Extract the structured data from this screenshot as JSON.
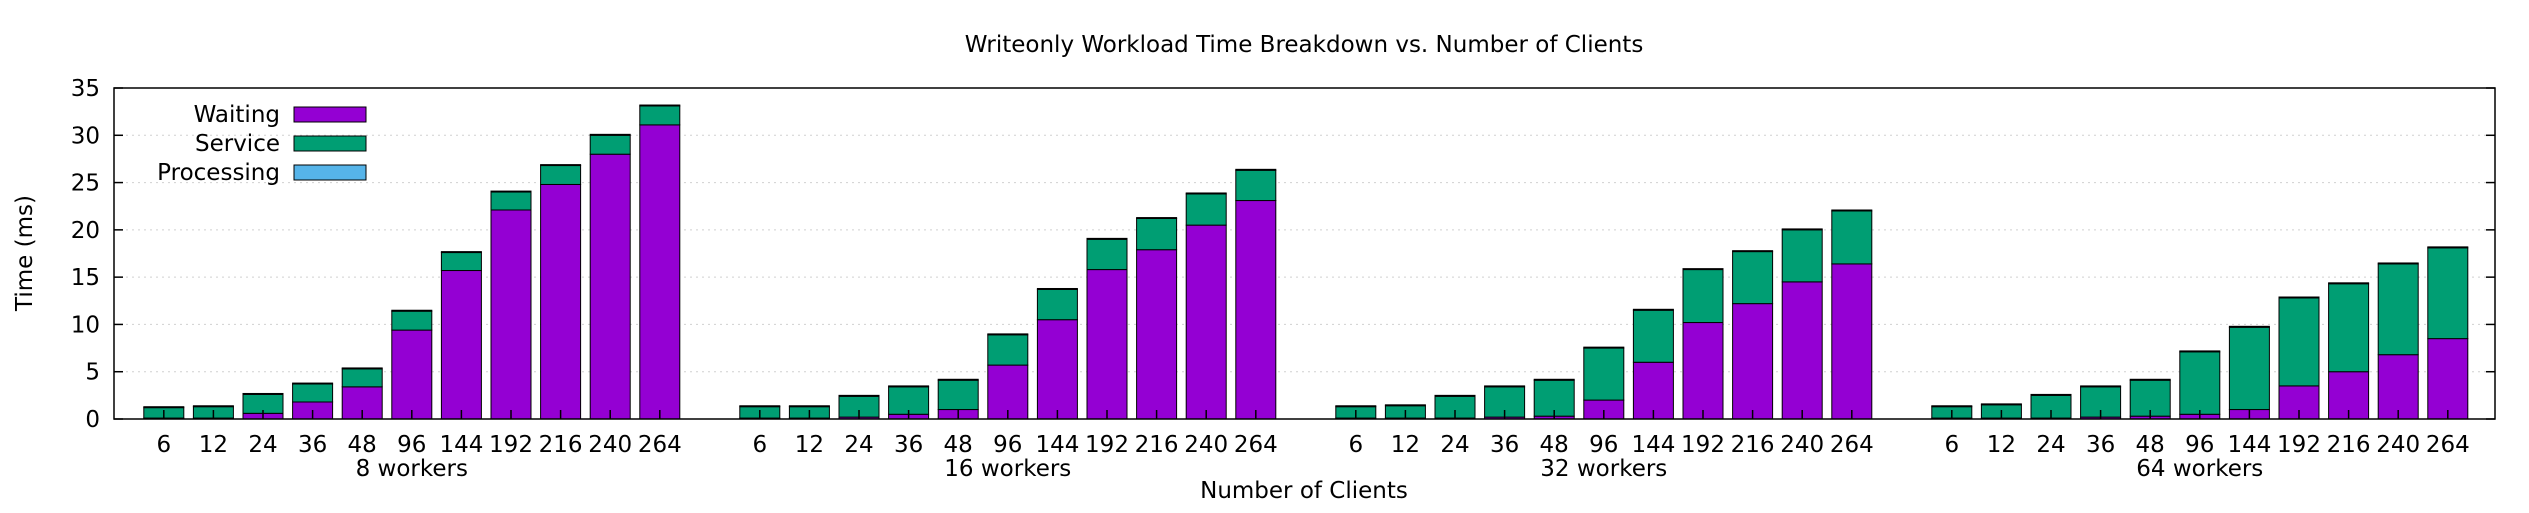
{
  "chart_data": {
    "type": "bar",
    "stacked": true,
    "title": "Writeonly Workload Time Breakdown vs. Number of Clients",
    "xlabel": "Number of Clients",
    "ylabel": "Time (ms)",
    "ylim": [
      0,
      35
    ],
    "yticks": [
      0,
      5,
      10,
      15,
      20,
      25,
      30,
      35
    ],
    "grid": true,
    "legend_position": "top-left",
    "series_names": [
      "Waiting",
      "Service",
      "Processing"
    ],
    "colors": {
      "Waiting": "#9400d3",
      "Service": "#009e73",
      "Processing": "#56b4e9"
    },
    "categories": [
      "6",
      "12",
      "24",
      "36",
      "48",
      "96",
      "144",
      "192",
      "216",
      "240",
      "264"
    ],
    "groups": [
      {
        "label": "8 workers",
        "waiting": [
          0.1,
          0.1,
          0.6,
          1.8,
          3.4,
          9.4,
          15.7,
          22.1,
          24.8,
          28.0,
          31.1
        ],
        "service": [
          1.1,
          1.2,
          2.0,
          1.9,
          1.9,
          2.0,
          1.9,
          1.9,
          2.0,
          2.0,
          2.0
        ],
        "processing": [
          0.1,
          0.1,
          0.1,
          0.1,
          0.1,
          0.1,
          0.1,
          0.1,
          0.1,
          0.1,
          0.1
        ]
      },
      {
        "label": "16 workers",
        "waiting": [
          0.1,
          0.1,
          0.2,
          0.5,
          1.0,
          5.7,
          10.5,
          15.8,
          17.9,
          20.5,
          23.1
        ],
        "service": [
          1.2,
          1.2,
          2.2,
          2.9,
          3.1,
          3.2,
          3.2,
          3.2,
          3.3,
          3.3,
          3.2
        ],
        "processing": [
          0.1,
          0.1,
          0.1,
          0.1,
          0.1,
          0.1,
          0.1,
          0.1,
          0.1,
          0.1,
          0.1
        ]
      },
      {
        "label": "32 workers",
        "waiting": [
          0.1,
          0.1,
          0.1,
          0.2,
          0.3,
          2.0,
          6.0,
          10.2,
          12.2,
          14.5,
          16.4
        ],
        "service": [
          1.2,
          1.3,
          2.3,
          3.2,
          3.8,
          5.5,
          5.5,
          5.6,
          5.5,
          5.5,
          5.6
        ],
        "processing": [
          0.1,
          0.1,
          0.1,
          0.1,
          0.1,
          0.1,
          0.1,
          0.1,
          0.1,
          0.1,
          0.1
        ]
      },
      {
        "label": "64 workers",
        "waiting": [
          0.1,
          0.1,
          0.1,
          0.2,
          0.3,
          0.5,
          1.0,
          3.5,
          5.0,
          6.8,
          8.5
        ],
        "service": [
          1.2,
          1.4,
          2.4,
          3.2,
          3.8,
          6.6,
          8.7,
          9.3,
          9.3,
          9.6,
          9.6
        ],
        "processing": [
          0.1,
          0.1,
          0.1,
          0.1,
          0.1,
          0.1,
          0.1,
          0.1,
          0.1,
          0.1,
          0.1
        ]
      }
    ]
  }
}
